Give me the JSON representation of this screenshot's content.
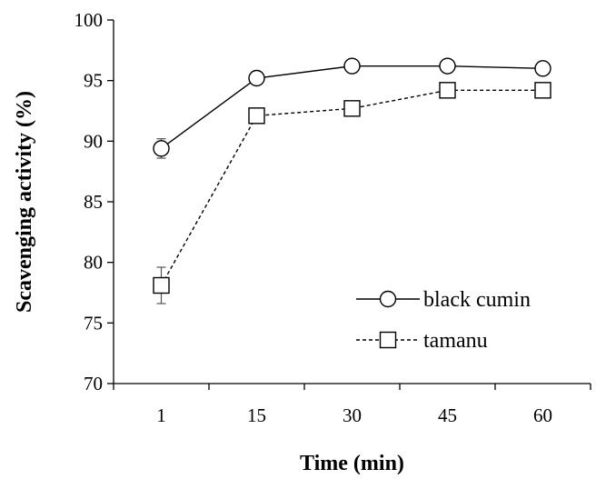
{
  "chart_data": {
    "type": "line",
    "xlabel": "Time (min)",
    "ylabel": "Scavenging activity (%)",
    "categories": [
      "1",
      "15",
      "30",
      "45",
      "60"
    ],
    "ylim": [
      70,
      100
    ],
    "yticks": [
      70,
      75,
      80,
      85,
      90,
      95,
      100
    ],
    "grid": false,
    "legend_position": "bottom-right",
    "series": [
      {
        "name": "black cumin",
        "values": [
          89.4,
          95.2,
          96.2,
          96.2,
          96.0
        ],
        "errors": [
          0.8,
          0.2,
          0.3,
          0.3,
          0.2
        ],
        "marker": "circle",
        "line_style": "solid",
        "color": "#000000"
      },
      {
        "name": "tamanu",
        "values": [
          78.1,
          92.1,
          92.7,
          94.2,
          94.2
        ],
        "errors": [
          1.5,
          0.3,
          0.3,
          0.2,
          0.2
        ],
        "marker": "square",
        "line_style": "dashed",
        "color": "#000000"
      }
    ]
  }
}
